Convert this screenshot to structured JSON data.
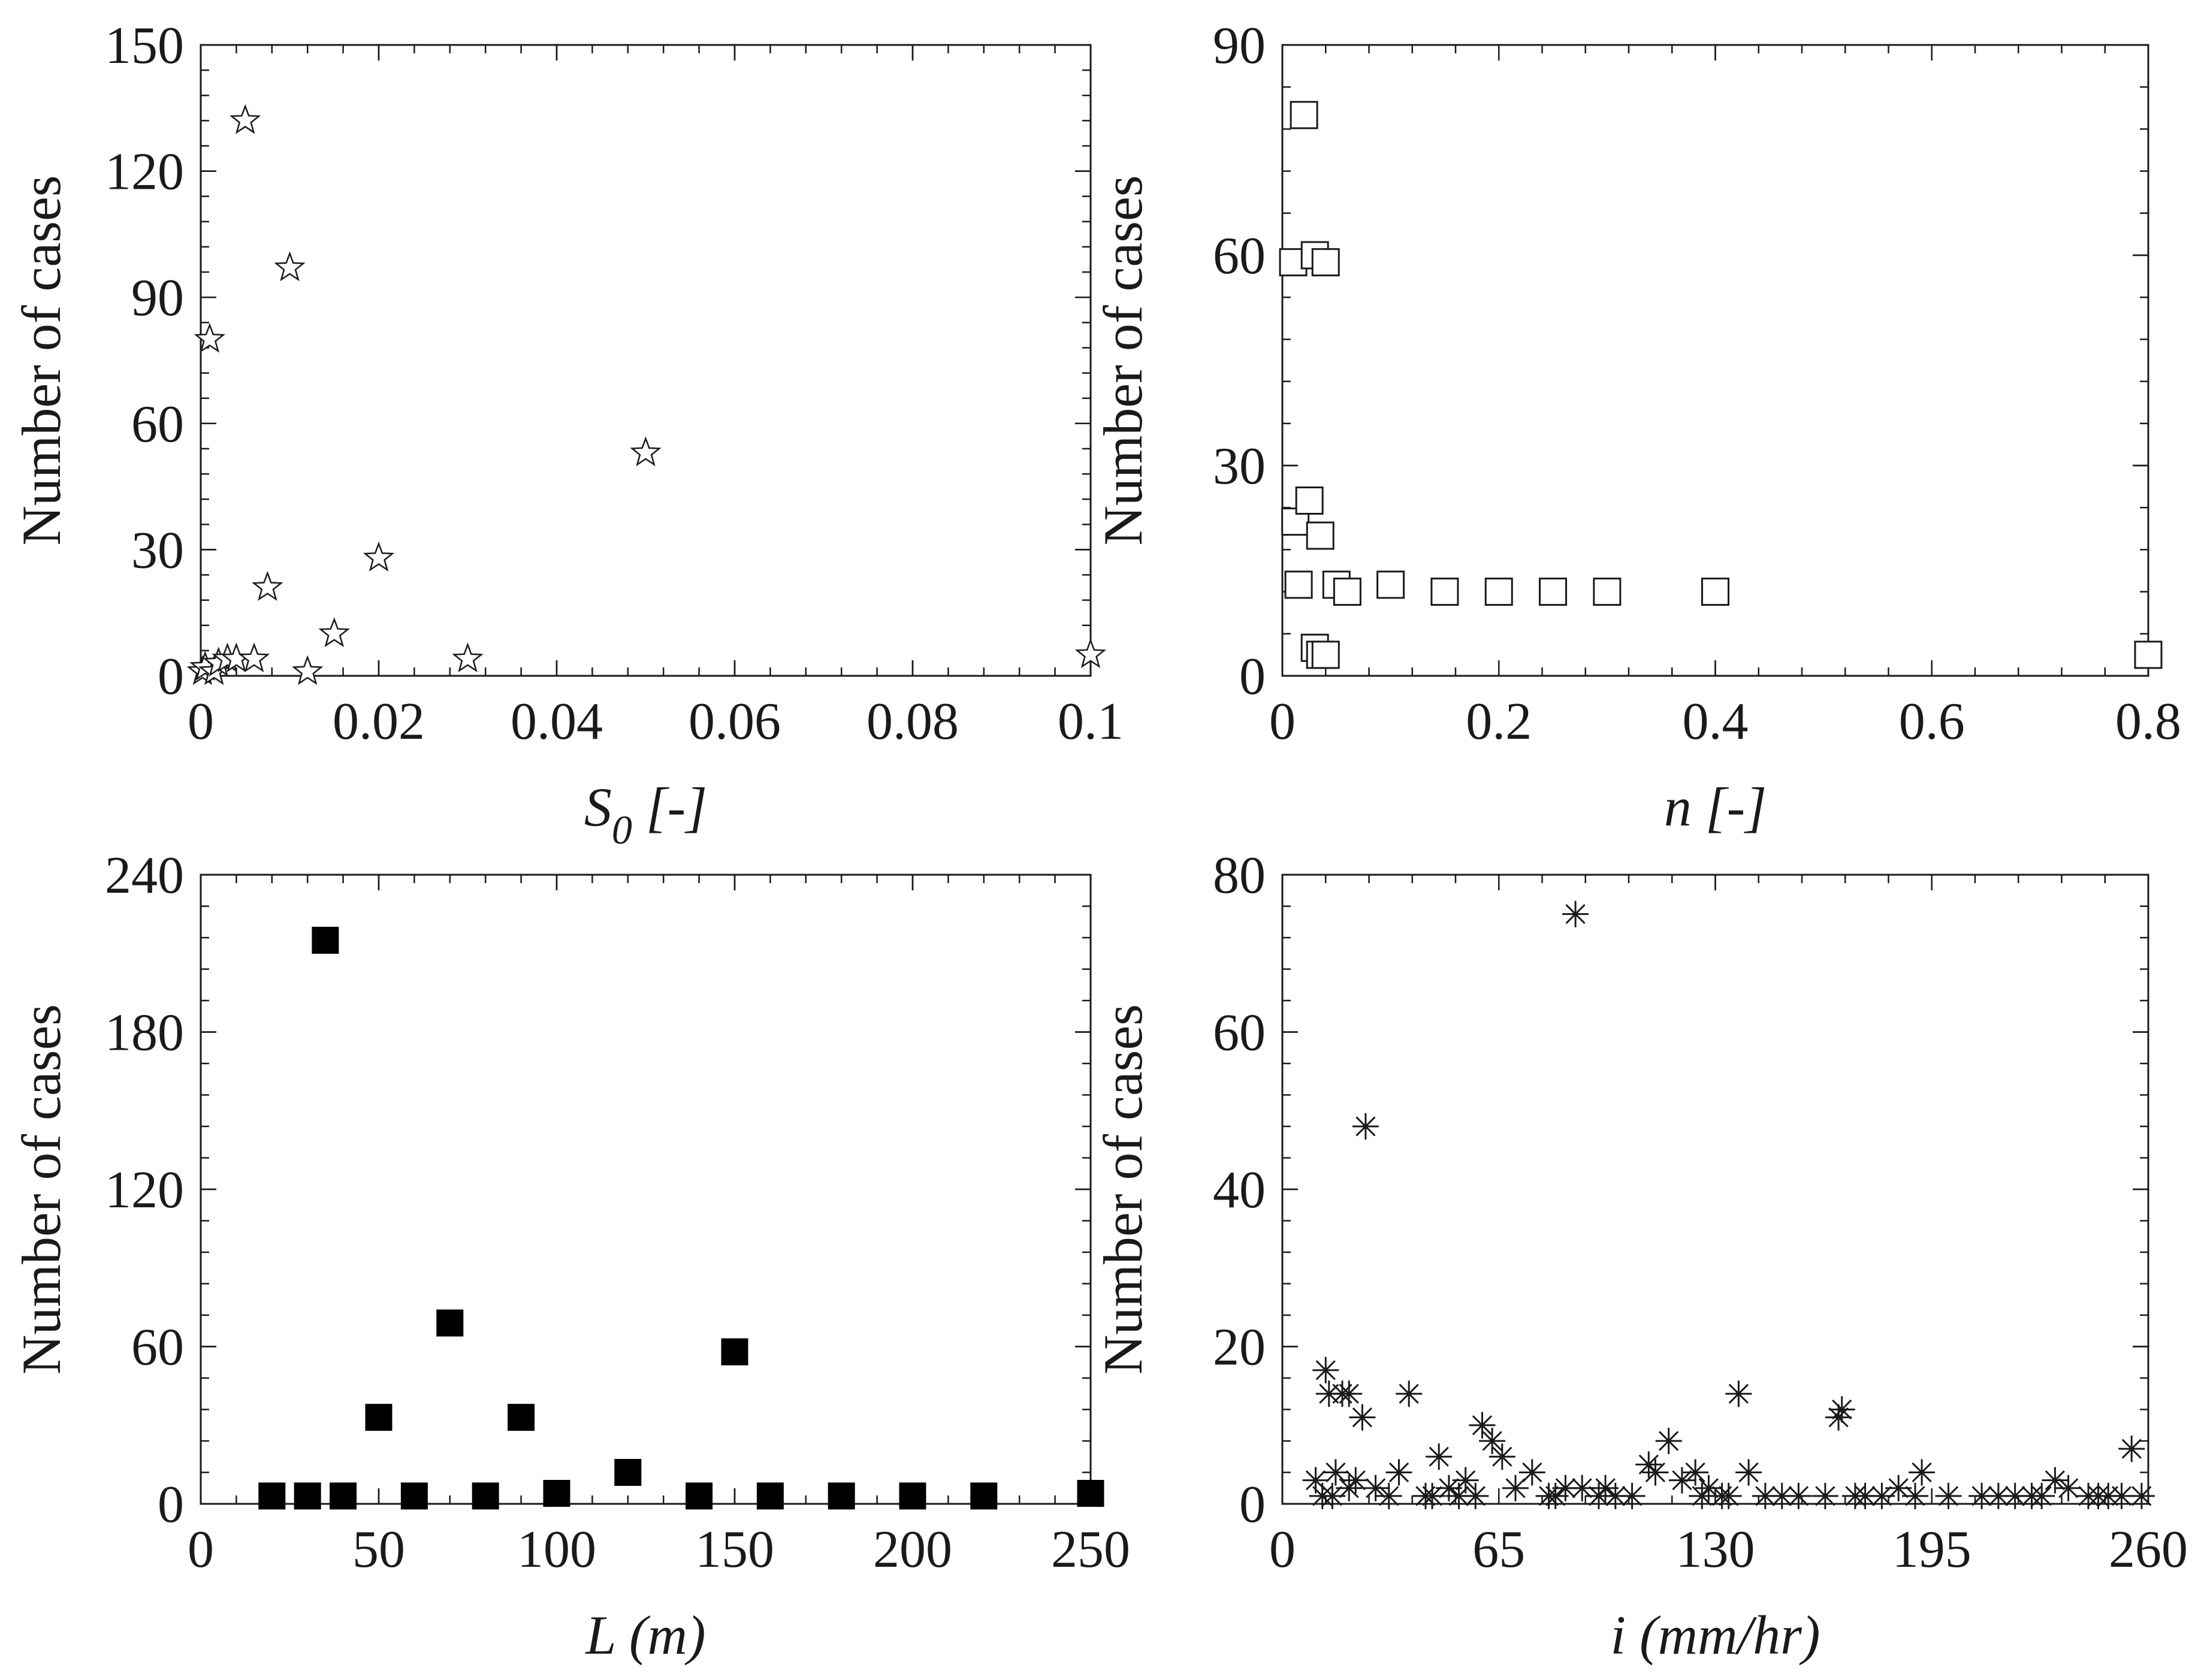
{
  "figure": {
    "colors": {
      "axis": "#1a1a1a",
      "marker_fill_dark": "#000000",
      "background": "#ffffff"
    }
  },
  "chart_data": [
    {
      "id": "s0",
      "type": "scatter",
      "marker": "open-star",
      "title": "",
      "xlabel": "S",
      "xlabel_sub": "0",
      "xlabel_suffix": " [-]",
      "ylabel": "Number of cases",
      "xlim": [
        0,
        0.1
      ],
      "ylim": [
        0,
        150
      ],
      "xticks": [
        0,
        0.02,
        0.04,
        0.06,
        0.08,
        0.1
      ],
      "xtick_labels": [
        "0",
        "0.02",
        "0.04",
        "0.06",
        "0.08",
        "0.1"
      ],
      "yticks": [
        0,
        30,
        60,
        90,
        120,
        150
      ],
      "ytick_labels": [
        "0",
        "30",
        "60",
        "90",
        "120",
        "150"
      ],
      "x": [
        0.0002,
        0.0005,
        0.001,
        0.0015,
        0.002,
        0.003,
        0.004,
        0.005,
        0.006,
        0.0075,
        0.01,
        0.012,
        0.015,
        0.02,
        0.03,
        0.05,
        0.1
      ],
      "y": [
        1,
        2,
        80,
        1,
        3,
        4,
        4,
        132,
        4,
        21,
        97,
        1,
        10,
        28,
        4,
        53,
        5
      ]
    },
    {
      "id": "n",
      "type": "scatter",
      "marker": "open-square",
      "title": "",
      "xlabel": "n [-]",
      "ylabel": "Number of cases",
      "xlim": [
        0,
        0.8
      ],
      "ylim": [
        0,
        90
      ],
      "xticks": [
        0,
        0.2,
        0.4,
        0.6,
        0.8
      ],
      "xtick_labels": [
        "0",
        "0.2",
        "0.4",
        "0.6",
        "0.8"
      ],
      "yticks": [
        0,
        30,
        60,
        90
      ],
      "ytick_labels": [
        "0",
        "30",
        "60",
        "90"
      ],
      "x": [
        0.01,
        0.012,
        0.015,
        0.02,
        0.025,
        0.03,
        0.035,
        0.04,
        0.03,
        0.035,
        0.04,
        0.05,
        0.06,
        0.1,
        0.15,
        0.2,
        0.25,
        0.3,
        0.4,
        0.8
      ],
      "y": [
        59,
        22,
        13,
        80,
        25,
        60,
        20,
        59,
        4,
        3,
        3,
        13,
        12,
        13,
        12,
        12,
        12,
        12,
        12,
        3
      ]
    },
    {
      "id": "L",
      "type": "scatter",
      "marker": "filled-square",
      "title": "",
      "xlabel": "L (m)",
      "ylabel": "Number of cases",
      "xlim": [
        0,
        250
      ],
      "ylim": [
        0,
        240
      ],
      "xticks": [
        0,
        50,
        100,
        150,
        200,
        250
      ],
      "xtick_labels": [
        "0",
        "50",
        "100",
        "150",
        "200",
        "250"
      ],
      "yticks": [
        0,
        60,
        120,
        180,
        240
      ],
      "ytick_labels": [
        "0",
        "60",
        "120",
        "180",
        "240"
      ],
      "x": [
        20,
        30,
        35,
        40,
        50,
        60,
        70,
        80,
        90,
        100,
        120,
        140,
        150,
        160,
        180,
        200,
        220,
        250
      ],
      "y": [
        3,
        3,
        215,
        3,
        33,
        3,
        69,
        3,
        33,
        4,
        12,
        3,
        58,
        3,
        3,
        3,
        3,
        4
      ]
    },
    {
      "id": "i",
      "type": "scatter",
      "marker": "asterisk",
      "title": "",
      "xlabel": "i (mm/hr)",
      "ylabel": "Number of cases",
      "xlim": [
        0,
        260
      ],
      "ylim": [
        0,
        80
      ],
      "xticks": [
        0,
        65,
        130,
        195,
        260
      ],
      "xtick_labels": [
        "0",
        "65",
        "130",
        "195",
        "260"
      ],
      "yticks": [
        0,
        20,
        40,
        60,
        80
      ],
      "ytick_labels": [
        "0",
        "20",
        "40",
        "60",
        "80"
      ],
      "x": [
        88,
        25,
        13,
        14,
        18,
        20,
        24,
        38,
        137,
        167,
        168,
        60,
        63,
        116,
        110,
        255,
        47,
        66,
        10,
        12,
        16,
        20,
        22,
        32,
        35,
        43,
        50,
        55,
        58,
        70,
        75,
        82,
        85,
        90,
        95,
        100,
        105,
        112,
        120,
        124,
        128,
        132,
        140,
        145,
        155,
        163,
        175,
        185,
        192,
        200,
        210,
        220,
        228,
        232,
        236,
        242,
        248,
        252,
        258,
        15,
        28,
        45,
        53,
        80,
        97,
        126,
        134,
        150,
        172,
        180,
        190,
        215,
        225,
        245
      ],
      "y": [
        75,
        48,
        17,
        14,
        14,
        14,
        11,
        14,
        14,
        11,
        12,
        10,
        8,
        8,
        5,
        7,
        6,
        6,
        3,
        1,
        4,
        2,
        3,
        1,
        4,
        1,
        2,
        3,
        1,
        2,
        4,
        1,
        2,
        2,
        1,
        1,
        1,
        4,
        3,
        4,
        2,
        1,
        4,
        1,
        1,
        1,
        1,
        2,
        4,
        1,
        1,
        1,
        1,
        3,
        2,
        1,
        1,
        1,
        1,
        1,
        2,
        1,
        1,
        1,
        2,
        1,
        1,
        1,
        1,
        1,
        1,
        1,
        1,
        1
      ]
    }
  ]
}
